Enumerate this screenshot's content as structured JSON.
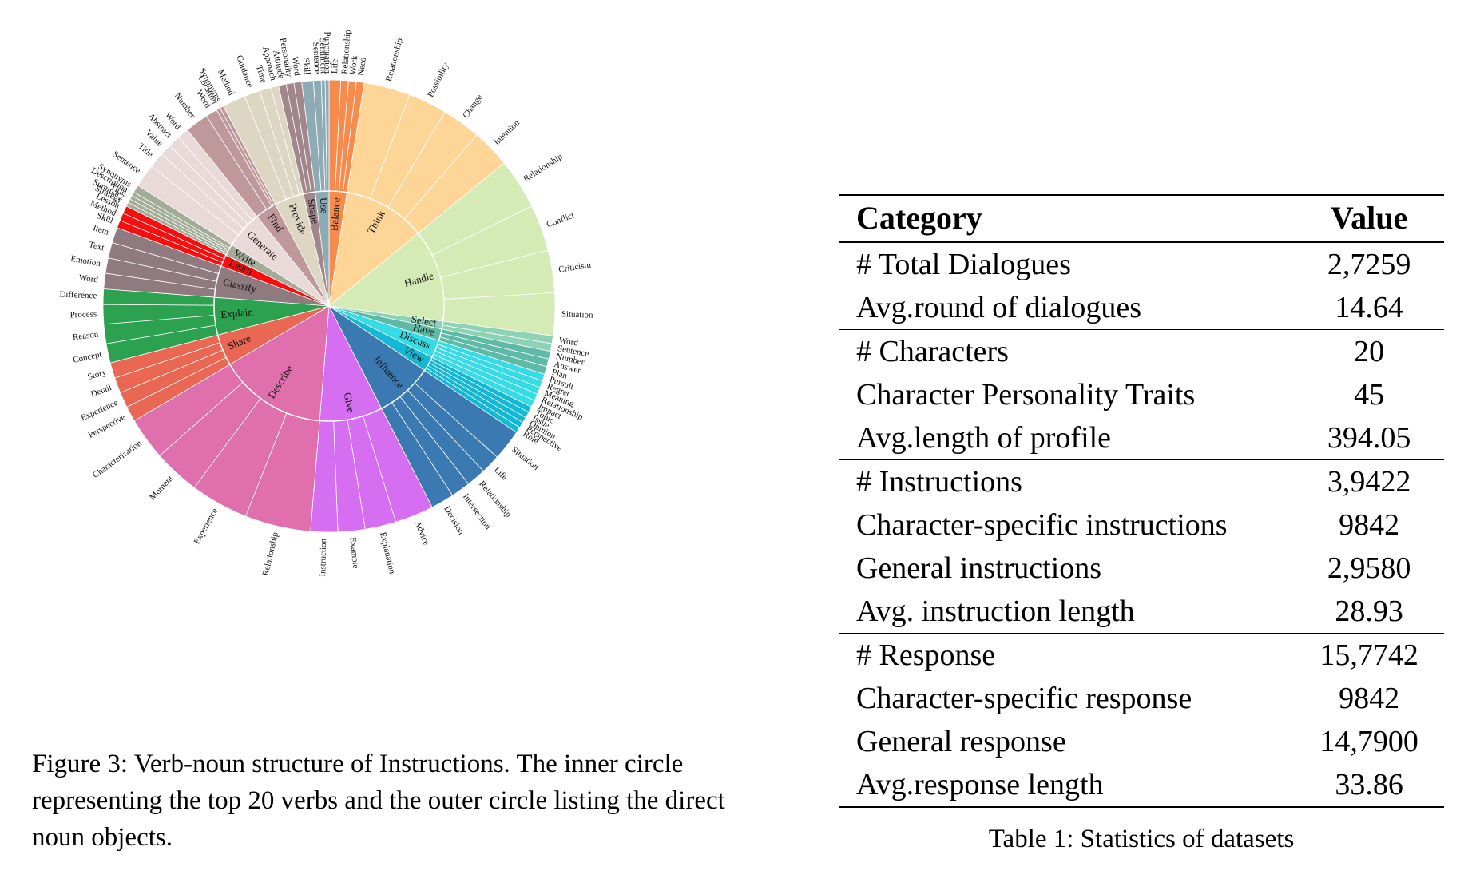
{
  "figure": {
    "caption": "Figure 3: Verb-noun structure of Instructions. The inner circle representing the top 20 verbs and the outer circle listing the direct noun objects.",
    "verbs": [
      {
        "verb": "Balance",
        "color": "#f58b4c",
        "nouns": [
          "Life",
          "Relationship",
          "Work",
          "Need"
        ]
      },
      {
        "verb": "Think",
        "color": "#fdd597",
        "nouns": [
          "Relationship",
          "Possibility",
          "Change",
          "Intention"
        ]
      },
      {
        "verb": "Handle",
        "color": "#d4ebb5",
        "nouns": [
          "Relationship",
          "Conflict",
          "Criticism",
          "Situation"
        ]
      },
      {
        "verb": "Select",
        "color": "#8ed2b5",
        "nouns": [
          "Word",
          "Sentence"
        ]
      },
      {
        "verb": "Have",
        "color": "#5fb9a7",
        "nouns": [
          "Number",
          "Answer",
          "Plan"
        ]
      },
      {
        "verb": "Discuss",
        "color": "#35dbe5",
        "nouns": [
          "Pursuit",
          "Regret",
          "Meaning",
          "Relationship",
          "Impact"
        ]
      },
      {
        "verb": "View",
        "color": "#12b9d6",
        "nouns": [
          "Topic",
          "Issue",
          "Opinion",
          "Perspective",
          "Role"
        ]
      },
      {
        "verb": "Influence",
        "color": "#3b79b2",
        "nouns": [
          "Situation",
          "Life",
          "Relationship",
          "Intersection",
          "Decision"
        ]
      },
      {
        "verb": "Give",
        "color": "#d66ef2",
        "nouns": [
          "Advice",
          "Explanation",
          "Example",
          "Instruction"
        ]
      },
      {
        "verb": "Describe",
        "color": "#e06fae",
        "nouns": [
          "Relationship",
          "Experience",
          "Moment",
          "Characterization"
        ]
      },
      {
        "verb": "Share",
        "color": "#ea6753",
        "nouns": [
          "Perspective",
          "Experience",
          "Detail",
          "Story"
        ]
      },
      {
        "verb": "Explain",
        "color": "#2ca14f",
        "nouns": [
          "Concept",
          "Reason",
          "Process",
          "Difference"
        ]
      },
      {
        "verb": "Classify",
        "color": "#8f7a80",
        "nouns": [
          "Word",
          "Emotion",
          "Text",
          "Item"
        ]
      },
      {
        "verb": "Learn",
        "color": "#f80e0e",
        "nouns": [
          "Skill",
          "Method",
          "Lesson"
        ]
      },
      {
        "verb": "Write",
        "color": "#a2ac97",
        "nouns": [
          "Strategy",
          "Summary",
          "Title",
          "Description",
          "Synonyms"
        ]
      },
      {
        "verb": "Generate",
        "color": "#ead9d9",
        "nouns": [
          "Sentence",
          "Title",
          "Value",
          "Abstract",
          "Word"
        ]
      },
      {
        "verb": "Find",
        "color": "#bf989b",
        "nouns": [
          "Number",
          "Word",
          "Location",
          "Synonyms"
        ]
      },
      {
        "verb": "Provide",
        "color": "#ddd6c2",
        "nouns": [
          "Method",
          "Guidance",
          "Time",
          "Approach"
        ]
      },
      {
        "verb": "Shape",
        "color": "#a1868c",
        "nouns": [
          "Attitude",
          "Personality",
          "Word"
        ]
      },
      {
        "verb": "Use",
        "color": "#8daab5",
        "nouns": [
          "Skill",
          "Sentence",
          "Sentiment",
          "Punctuation"
        ]
      }
    ],
    "weights": [
      [
        3,
        2,
        2,
        2
      ],
      [
        12,
        10,
        10,
        10
      ],
      [
        13,
        12,
        11,
        11
      ],
      [
        2,
        2
      ],
      [
        2,
        2,
        2
      ],
      [
        1.8,
        1.8,
        1.8,
        1.8,
        1.8
      ],
      [
        1.5,
        1.5,
        1.5,
        1.5,
        1.5
      ],
      [
        8,
        5,
        5,
        5,
        6
      ],
      [
        10,
        8,
        7,
        7
      ],
      [
        17,
        15,
        12,
        11
      ],
      [
        4,
        4,
        4,
        4
      ],
      [
        5,
        5,
        5,
        4
      ],
      [
        4,
        4,
        4,
        4
      ],
      [
        2,
        2,
        2
      ],
      [
        1,
        1,
        1,
        1,
        2
      ],
      [
        6,
        4,
        3,
        3,
        3
      ],
      [
        6,
        3,
        1,
        1
      ],
      [
        6,
        4,
        3,
        2
      ],
      [
        2,
        2,
        2
      ],
      [
        3,
        2,
        1,
        1
      ]
    ]
  },
  "table": {
    "caption": "Table 1: Statistics of datasets",
    "header": {
      "category": "Category",
      "value": "Value"
    },
    "groups": [
      [
        {
          "category": "# Total Dialogues",
          "value": "2,7259"
        },
        {
          "category": "Avg.round of dialogues",
          "value": "14.64"
        }
      ],
      [
        {
          "category": "# Characters",
          "value": "20"
        },
        {
          "category": "Character Personality Traits",
          "value": "45"
        },
        {
          "category": "Avg.length of profile",
          "value": "394.05"
        }
      ],
      [
        {
          "category": "# Instructions",
          "value": "3,9422"
        },
        {
          "category": "Character-specific instructions",
          "value": "9842"
        },
        {
          "category": "General instructions",
          "value": "2,9580"
        },
        {
          "category": "Avg. instruction length",
          "value": "28.93"
        }
      ],
      [
        {
          "category": "# Response",
          "value": "15,7742"
        },
        {
          "category": "Character-specific response",
          "value": "9842"
        },
        {
          "category": "General response",
          "value": "14,7900"
        },
        {
          "category": "Avg.response length",
          "value": "33.86"
        }
      ]
    ]
  }
}
